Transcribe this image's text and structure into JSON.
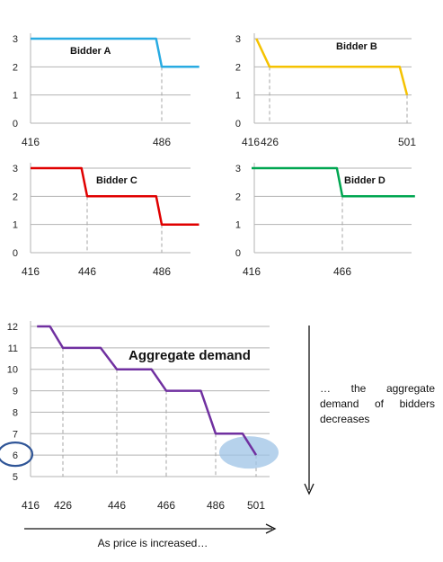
{
  "chart_data": [
    {
      "type": "line",
      "title": "Bidder A",
      "color": "#29abe2",
      "x_ticks": [
        "416",
        "486"
      ],
      "y_ticks": [
        "0",
        "1",
        "2",
        "3"
      ],
      "ylim": [
        0,
        3
      ],
      "xlim": [
        416,
        506
      ],
      "dashed_drop_x": [
        486
      ],
      "points": [
        [
          416,
          3
        ],
        [
          483,
          3
        ],
        [
          486,
          2
        ],
        [
          506,
          2
        ]
      ]
    },
    {
      "type": "line",
      "title": "Bidder B",
      "color": "#f5c200",
      "x_ticks": [
        "416",
        "426",
        "501"
      ],
      "y_ticks": [
        "0",
        "1",
        "2",
        "3"
      ],
      "ylim": [
        0,
        3
      ],
      "xlim": [
        416,
        501
      ],
      "dashed_drop_x": [
        426,
        501
      ],
      "points": [
        [
          419,
          3
        ],
        [
          426,
          2
        ],
        [
          497,
          2
        ],
        [
          501,
          1
        ]
      ]
    },
    {
      "type": "line",
      "title": "Bidder C",
      "color": "#e00000",
      "x_ticks": [
        "416",
        "446",
        "486"
      ],
      "y_ticks": [
        "0",
        "1",
        "2",
        "3"
      ],
      "ylim": [
        0,
        3
      ],
      "xlim": [
        416,
        506
      ],
      "dashed_drop_x": [
        446,
        486
      ],
      "points": [
        [
          416,
          3
        ],
        [
          443,
          3
        ],
        [
          446,
          2
        ],
        [
          483,
          2
        ],
        [
          486,
          1
        ],
        [
          506,
          1
        ]
      ]
    },
    {
      "type": "line",
      "title": "Bidder D",
      "color": "#00a651",
      "x_ticks": [
        "416",
        "466"
      ],
      "y_ticks": [
        "0",
        "1",
        "2",
        "3"
      ],
      "ylim": [
        0,
        3
      ],
      "xlim": [
        416,
        506
      ],
      "dashed_drop_x": [
        466
      ],
      "points": [
        [
          416,
          3
        ],
        [
          463,
          3
        ],
        [
          466,
          2
        ],
        [
          506,
          2
        ]
      ]
    },
    {
      "type": "line",
      "title": "Aggregate demand",
      "color": "#7030a0",
      "x_ticks": [
        "416",
        "426",
        "446",
        "466",
        "486",
        "501"
      ],
      "y_ticks": [
        "5",
        "6",
        "7",
        "8",
        "9",
        "10",
        "11",
        "12"
      ],
      "ylim": [
        5,
        12
      ],
      "xlim": [
        416,
        506
      ],
      "dashed_drop_x": [
        426,
        446,
        466,
        486,
        501
      ],
      "highlight": {
        "x": 501,
        "y": 6
      },
      "circled_tick": "6",
      "points": [
        [
          418,
          12
        ],
        [
          422,
          12
        ],
        [
          426,
          11
        ],
        [
          440,
          11
        ],
        [
          446,
          10
        ],
        [
          460,
          10
        ],
        [
          466,
          9
        ],
        [
          480,
          9
        ],
        [
          486,
          7
        ],
        [
          496,
          7
        ],
        [
          501,
          6
        ]
      ]
    }
  ],
  "annotations": {
    "right_note": "… the aggregate demand of bidders decreases",
    "bottom_caption": "As price is increased…"
  },
  "colors": {
    "axis": "#b3b3b3",
    "dashed": "#a6a6a6",
    "highlight_fill": "#9dc3e6",
    "circle_stroke": "#2f5597",
    "arrow": "#111111"
  }
}
